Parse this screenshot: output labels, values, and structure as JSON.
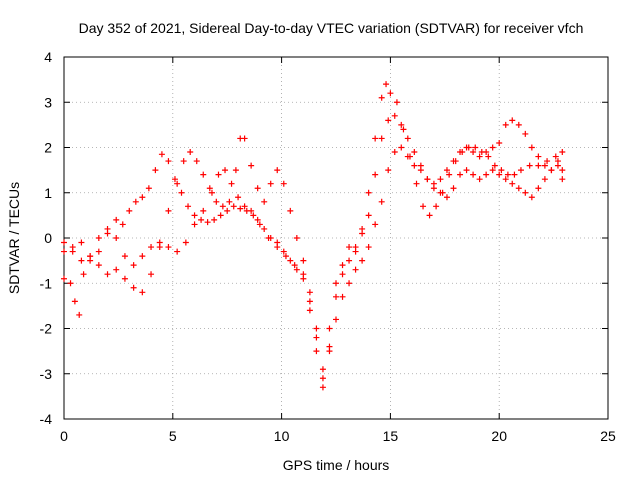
{
  "chart_data": {
    "type": "scatter",
    "title": "Day 352 of 2021, Sidereal Day-to-day VTEC variation (SDTVAR) for receiver vfch",
    "xlabel": "GPS time / hours",
    "ylabel": "SDTVAR / TECUs",
    "xlim": [
      0,
      25
    ],
    "ylim": [
      -4,
      4
    ],
    "x_ticks": [
      "0",
      "5",
      "10",
      "15",
      "20",
      "25"
    ],
    "y_ticks": [
      "-4",
      "-3",
      "-2",
      "-1",
      "0",
      "1",
      "2",
      "3",
      "4"
    ],
    "grid": true,
    "marker": "plus",
    "color": "#ff0000",
    "series": [
      {
        "points": [
          [
            0,
            -0.9
          ],
          [
            0.3,
            -1.0
          ],
          [
            0.5,
            -1.4
          ],
          [
            0.7,
            -1.7
          ],
          [
            0.9,
            -0.8
          ],
          [
            1.2,
            -0.5
          ],
          [
            1.6,
            -0.3
          ],
          [
            2.0,
            0.1
          ],
          [
            2.4,
            0.4
          ],
          [
            2.7,
            0.3
          ],
          [
            3.0,
            0.6
          ],
          [
            3.3,
            0.8
          ],
          [
            3.6,
            0.9
          ],
          [
            3.9,
            1.1
          ],
          [
            4.2,
            1.5
          ],
          [
            4.5,
            1.85
          ],
          [
            4.8,
            1.7
          ],
          [
            5.1,
            1.3
          ],
          [
            5.4,
            1.0
          ],
          [
            5.7,
            0.7
          ],
          [
            6.0,
            0.5
          ],
          [
            6.3,
            0.4
          ],
          [
            6.6,
            0.35
          ],
          [
            6.9,
            0.4
          ],
          [
            7.2,
            0.5
          ],
          [
            7.5,
            0.6
          ],
          [
            7.8,
            0.7
          ],
          [
            8.1,
            0.65
          ],
          [
            8.4,
            0.6
          ],
          [
            8.7,
            0.5
          ],
          [
            9.0,
            0.3
          ],
          [
            9.4,
            0.0
          ],
          [
            9.8,
            -0.2
          ],
          [
            10.2,
            -0.4
          ],
          [
            10.6,
            -0.6
          ],
          [
            11.0,
            -0.9
          ],
          [
            11.3,
            -1.6
          ],
          [
            11.6,
            -2.5
          ],
          [
            11.9,
            -3.3
          ],
          [
            12.2,
            -2.4
          ],
          [
            12.5,
            -1.3
          ],
          [
            12.8,
            -0.6
          ],
          [
            13.1,
            -0.2
          ],
          [
            13.4,
            -0.3
          ],
          [
            13.7,
            0.2
          ],
          [
            14.0,
            1.0
          ],
          [
            14.3,
            2.2
          ],
          [
            14.6,
            3.1
          ],
          [
            14.8,
            3.4
          ],
          [
            15.0,
            3.2
          ],
          [
            15.3,
            3.0
          ],
          [
            15.6,
            2.4
          ],
          [
            15.9,
            1.8
          ],
          [
            16.2,
            1.2
          ],
          [
            16.5,
            0.7
          ],
          [
            16.8,
            0.5
          ],
          [
            17.1,
            0.7
          ],
          [
            17.4,
            1.0
          ],
          [
            17.7,
            1.4
          ],
          [
            18.0,
            1.7
          ],
          [
            18.3,
            1.9
          ],
          [
            18.6,
            2.0
          ],
          [
            18.9,
            2.0
          ],
          [
            19.2,
            1.9
          ],
          [
            19.5,
            1.8
          ],
          [
            19.8,
            1.6
          ],
          [
            20.1,
            1.5
          ],
          [
            20.4,
            1.4
          ],
          [
            20.7,
            1.4
          ],
          [
            21.0,
            1.5
          ],
          [
            21.4,
            1.6
          ],
          [
            21.8,
            1.6
          ],
          [
            22.2,
            1.7
          ],
          [
            22.6,
            1.8
          ],
          [
            22.9,
            1.5
          ]
        ]
      },
      {
        "points": [
          [
            0,
            -0.3
          ],
          [
            0.4,
            -0.2
          ],
          [
            0.8,
            -0.1
          ],
          [
            1.2,
            -0.4
          ],
          [
            1.6,
            -0.6
          ],
          [
            2.0,
            -0.8
          ],
          [
            2.4,
            -0.7
          ],
          [
            2.8,
            -0.9
          ],
          [
            3.2,
            -1.1
          ],
          [
            3.6,
            -1.2
          ],
          [
            4.0,
            -0.8
          ],
          [
            4.4,
            -0.2
          ],
          [
            4.8,
            0.6
          ],
          [
            5.2,
            1.2
          ],
          [
            5.5,
            1.7
          ],
          [
            5.8,
            1.9
          ],
          [
            6.1,
            1.7
          ],
          [
            6.4,
            1.4
          ],
          [
            6.7,
            1.1
          ],
          [
            7.0,
            0.8
          ],
          [
            7.3,
            0.7
          ],
          [
            7.6,
            0.8
          ],
          [
            7.9,
            1.5
          ],
          [
            8.1,
            2.2
          ],
          [
            8.3,
            2.2
          ],
          [
            8.6,
            1.6
          ],
          [
            8.9,
            1.1
          ],
          [
            9.2,
            0.8
          ],
          [
            9.5,
            1.2
          ],
          [
            9.8,
            1.5
          ],
          [
            10.1,
            1.2
          ],
          [
            10.4,
            0.6
          ],
          [
            10.7,
            0.0
          ],
          [
            11.0,
            -0.5
          ],
          [
            11.3,
            -1.2
          ],
          [
            11.6,
            -2.0
          ],
          [
            11.9,
            -2.9
          ],
          [
            12.2,
            -2.0
          ],
          [
            12.5,
            -1.0
          ],
          [
            12.8,
            -0.8
          ],
          [
            13.1,
            -0.5
          ],
          [
            13.4,
            -0.2
          ],
          [
            13.7,
            0.1
          ],
          [
            14.0,
            0.5
          ],
          [
            14.3,
            1.4
          ],
          [
            14.6,
            2.2
          ],
          [
            14.9,
            2.6
          ],
          [
            15.2,
            2.7
          ],
          [
            15.5,
            2.5
          ],
          [
            15.8,
            2.2
          ],
          [
            16.1,
            1.9
          ],
          [
            16.4,
            1.6
          ],
          [
            16.7,
            1.3
          ],
          [
            17.0,
            1.2
          ],
          [
            17.3,
            1.3
          ],
          [
            17.6,
            1.5
          ],
          [
            17.9,
            1.7
          ],
          [
            18.2,
            1.9
          ],
          [
            18.5,
            2.0
          ],
          [
            18.8,
            1.9
          ],
          [
            19.1,
            1.8
          ],
          [
            19.4,
            1.9
          ],
          [
            19.7,
            2.0
          ],
          [
            20.0,
            2.1
          ],
          [
            20.3,
            2.5
          ],
          [
            20.6,
            2.6
          ],
          [
            20.9,
            2.5
          ],
          [
            21.2,
            2.3
          ],
          [
            21.5,
            2.0
          ],
          [
            21.8,
            1.8
          ],
          [
            22.1,
            1.6
          ],
          [
            22.4,
            1.5
          ],
          [
            22.7,
            1.6
          ],
          [
            22.9,
            1.3
          ]
        ]
      },
      {
        "points": [
          [
            0,
            -0.1
          ],
          [
            0.4,
            -0.3
          ],
          [
            0.8,
            -0.5
          ],
          [
            1.2,
            -0.4
          ],
          [
            1.6,
            0.0
          ],
          [
            2.0,
            0.2
          ],
          [
            2.4,
            0.0
          ],
          [
            2.8,
            -0.4
          ],
          [
            3.2,
            -0.6
          ],
          [
            3.6,
            -0.4
          ],
          [
            4.0,
            -0.2
          ],
          [
            4.4,
            -0.1
          ],
          [
            4.8,
            -0.2
          ],
          [
            5.2,
            -0.3
          ],
          [
            5.6,
            -0.1
          ],
          [
            6.0,
            0.3
          ],
          [
            6.4,
            0.6
          ],
          [
            6.8,
            1.0
          ],
          [
            7.1,
            1.4
          ],
          [
            7.4,
            1.5
          ],
          [
            7.7,
            1.2
          ],
          [
            8.0,
            0.9
          ],
          [
            8.3,
            0.7
          ],
          [
            8.6,
            0.6
          ],
          [
            8.9,
            0.4
          ],
          [
            9.2,
            0.2
          ],
          [
            9.5,
            0.0
          ],
          [
            9.8,
            -0.1
          ],
          [
            10.1,
            -0.3
          ],
          [
            10.4,
            -0.5
          ],
          [
            10.7,
            -0.7
          ],
          [
            11.0,
            -0.8
          ],
          [
            11.3,
            -1.4
          ],
          [
            11.6,
            -2.2
          ],
          [
            11.9,
            -3.1
          ],
          [
            12.2,
            -2.5
          ],
          [
            12.5,
            -1.8
          ],
          [
            12.8,
            -1.3
          ],
          [
            13.1,
            -1.0
          ],
          [
            13.4,
            -0.7
          ],
          [
            13.7,
            -0.5
          ],
          [
            14.0,
            -0.2
          ],
          [
            14.3,
            0.3
          ],
          [
            14.6,
            0.8
          ],
          [
            14.9,
            1.5
          ],
          [
            15.2,
            1.9
          ],
          [
            15.5,
            2.0
          ],
          [
            15.8,
            1.8
          ],
          [
            16.1,
            1.6
          ],
          [
            16.4,
            1.5
          ],
          [
            16.7,
            1.3
          ],
          [
            17.0,
            1.1
          ],
          [
            17.3,
            1.0
          ],
          [
            17.6,
            0.9
          ],
          [
            17.9,
            1.1
          ],
          [
            18.2,
            1.4
          ],
          [
            18.5,
            1.5
          ],
          [
            18.8,
            1.4
          ],
          [
            19.1,
            1.3
          ],
          [
            19.4,
            1.4
          ],
          [
            19.7,
            1.5
          ],
          [
            20.0,
            1.4
          ],
          [
            20.3,
            1.3
          ],
          [
            20.6,
            1.2
          ],
          [
            20.9,
            1.1
          ],
          [
            21.2,
            1.0
          ],
          [
            21.5,
            0.9
          ],
          [
            21.8,
            1.1
          ],
          [
            22.1,
            1.3
          ],
          [
            22.4,
            1.5
          ],
          [
            22.7,
            1.7
          ],
          [
            22.9,
            1.9
          ]
        ]
      }
    ]
  }
}
